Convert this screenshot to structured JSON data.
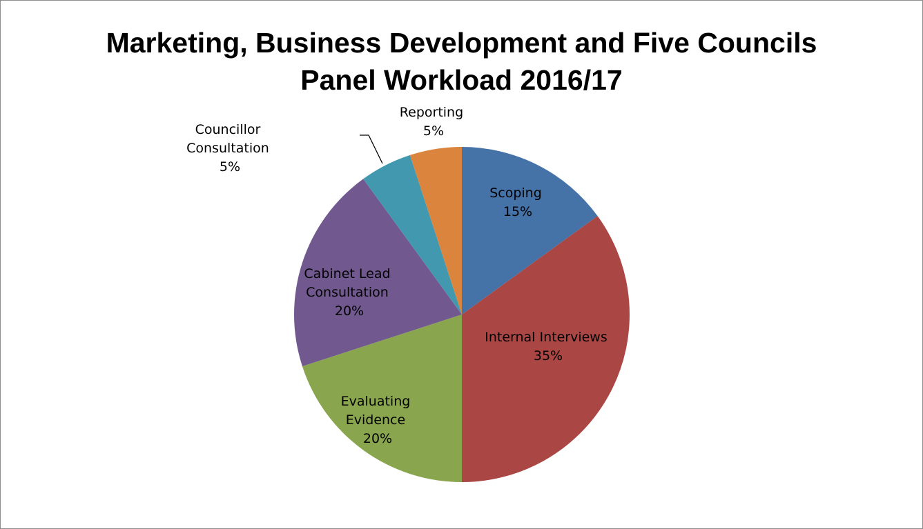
{
  "chart_data": {
    "type": "pie",
    "title_lines": [
      "Marketing, Business Development and Five Councils",
      "Panel Workload 2016/17"
    ],
    "legend": "none",
    "colors": [
      "#4572A7",
      "#AA4643",
      "#89A54E",
      "#71588F",
      "#4198AF",
      "#DB843D"
    ],
    "slices": [
      {
        "label_lines": [
          "Scoping"
        ],
        "pct": "15%",
        "value": 15
      },
      {
        "label_lines": [
          "Internal Interviews"
        ],
        "pct": "35%",
        "value": 35
      },
      {
        "label_lines": [
          "Evaluating",
          "Evidence"
        ],
        "pct": "20%",
        "value": 20
      },
      {
        "label_lines": [
          "Cabinet Lead",
          "Consultation"
        ],
        "pct": "20%",
        "value": 20
      },
      {
        "label_lines": [
          "Councillor",
          "Consultation"
        ],
        "pct": "5%",
        "value": 5
      },
      {
        "label_lines": [
          "Reporting"
        ],
        "pct": "5%",
        "value": 5
      }
    ]
  }
}
